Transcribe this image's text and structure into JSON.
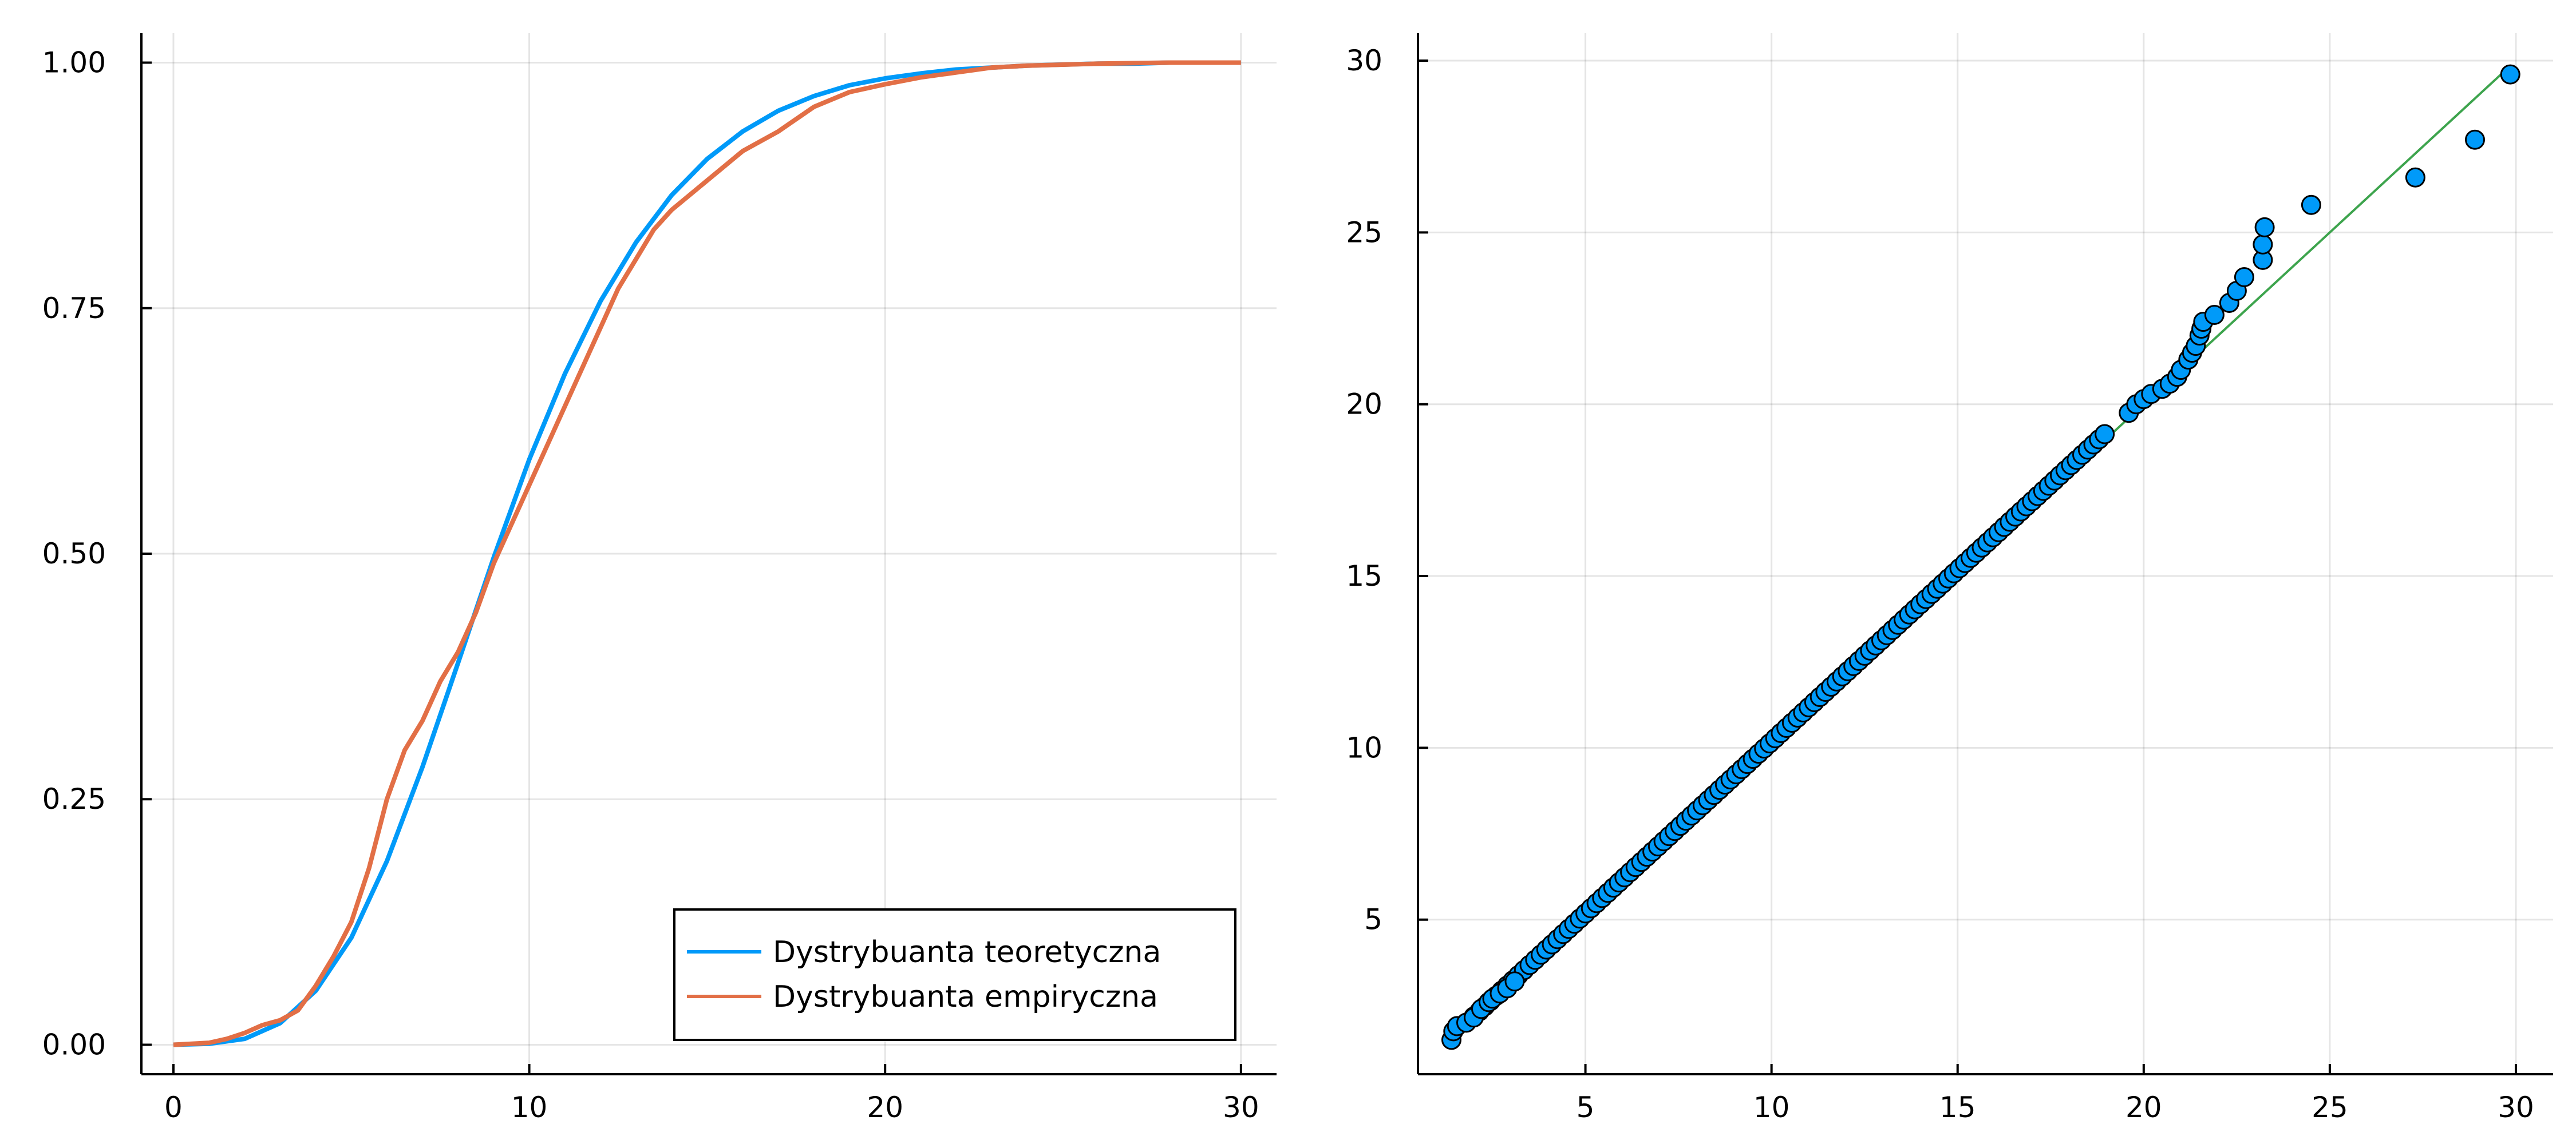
{
  "colors": {
    "theoretical": "#009af9",
    "empirical": "#e26f46",
    "points": "#009af9",
    "reference_line": "#3da44d"
  },
  "chart_data": [
    {
      "type": "line",
      "title": "",
      "xlabel": "",
      "ylabel": "",
      "xlim": [
        -0.9,
        31.0
      ],
      "ylim": [
        -0.03,
        1.03
      ],
      "xticks": [
        0,
        10,
        20,
        30
      ],
      "xtick_labels": [
        "0",
        "10",
        "20",
        "30"
      ],
      "yticks": [
        0.0,
        0.25,
        0.5,
        0.75,
        1.0
      ],
      "ytick_labels": [
        "0.00",
        "0.25",
        "0.50",
        "0.75",
        "1.00"
      ],
      "grid": true,
      "legend_position": "bottom-right",
      "series": [
        {
          "name": "Dystrybuanta teoretyczna",
          "x": [
            0,
            1,
            2,
            3,
            4,
            5,
            6,
            7,
            8,
            9,
            10,
            11,
            12,
            13,
            14,
            15,
            16,
            17,
            18,
            19,
            20,
            21,
            22,
            23,
            24,
            25,
            26,
            27,
            28,
            29,
            30
          ],
          "values": [
            0.0,
            0.001,
            0.006,
            0.022,
            0.055,
            0.109,
            0.187,
            0.283,
            0.389,
            0.496,
            0.596,
            0.683,
            0.757,
            0.817,
            0.865,
            0.902,
            0.93,
            0.951,
            0.966,
            0.977,
            0.984,
            0.989,
            0.993,
            0.995,
            0.997,
            0.998,
            0.999,
            0.999,
            1.0,
            1.0,
            1.0
          ]
        },
        {
          "name": "Dystrybuanta empiryczna",
          "x": [
            0,
            1,
            1.5,
            2,
            2.5,
            3,
            3.5,
            4,
            4.5,
            5,
            5.5,
            6,
            6.5,
            7,
            7.5,
            8,
            8.5,
            9,
            9.5,
            10,
            10.5,
            11,
            11.5,
            12,
            12.5,
            13,
            13.5,
            14,
            14.5,
            15,
            16,
            17,
            18,
            19,
            20,
            21,
            22,
            23,
            24,
            26,
            28,
            30
          ],
          "values": [
            0.0,
            0.002,
            0.006,
            0.012,
            0.02,
            0.025,
            0.035,
            0.06,
            0.09,
            0.125,
            0.18,
            0.25,
            0.3,
            0.33,
            0.37,
            0.4,
            0.44,
            0.49,
            0.53,
            0.57,
            0.61,
            0.65,
            0.69,
            0.73,
            0.77,
            0.8,
            0.83,
            0.85,
            0.865,
            0.88,
            0.91,
            0.93,
            0.955,
            0.97,
            0.978,
            0.985,
            0.99,
            0.995,
            0.997,
            0.999,
            1.0,
            1.0
          ]
        }
      ]
    },
    {
      "type": "scatter",
      "title": "",
      "xlabel": "",
      "ylabel": "",
      "xlim": [
        0.5,
        31.0
      ],
      "ylim": [
        0.5,
        30.8
      ],
      "xticks": [
        5,
        10,
        15,
        20,
        25,
        30
      ],
      "xtick_labels": [
        "5",
        "10",
        "15",
        "20",
        "25",
        "30"
      ],
      "yticks": [
        5,
        10,
        15,
        20,
        25,
        30
      ],
      "ytick_labels": [
        "5",
        "10",
        "15",
        "20",
        "25",
        "30"
      ],
      "grid": true,
      "reference_line": {
        "x": [
          1.35,
          29.85
        ],
        "y": [
          1.35,
          29.85
        ]
      },
      "dense_band": {
        "start": 2.0,
        "end": 19.0,
        "step": 0.15,
        "offset": 0.18
      },
      "outliers": {
        "x": [
          1.4,
          1.45,
          1.55,
          1.8,
          2.0,
          2.2,
          2.4,
          2.5,
          2.7,
          2.9,
          3.1,
          19.6,
          19.8,
          20.0,
          20.2,
          20.5,
          20.7,
          20.9,
          21.0,
          21.2,
          21.3,
          21.4,
          21.5,
          21.55,
          21.6,
          21.9,
          22.3,
          22.5,
          22.7,
          23.2,
          23.2,
          23.25,
          24.5,
          27.3,
          28.9,
          29.85
        ],
        "y": [
          1.5,
          1.75,
          1.9,
          2.0,
          2.15,
          2.4,
          2.6,
          2.7,
          2.85,
          3.0,
          3.2,
          19.75,
          20.0,
          20.15,
          20.3,
          20.45,
          20.6,
          20.8,
          21.0,
          21.3,
          21.5,
          21.7,
          22.0,
          22.2,
          22.4,
          22.6,
          22.95,
          23.3,
          23.7,
          24.2,
          24.65,
          25.15,
          25.8,
          26.6,
          27.7,
          29.6
        ]
      }
    }
  ]
}
